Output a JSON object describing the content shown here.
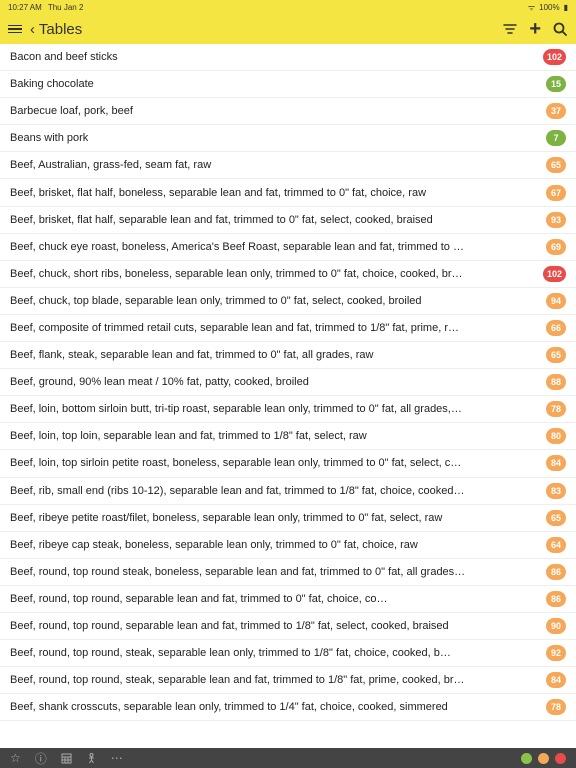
{
  "status": {
    "time": "10:27 AM",
    "date": "Thu Jan 2",
    "wifi": "⌁",
    "battery": "100%"
  },
  "nav": {
    "back_title": "‹ Tables",
    "filter": "⇅",
    "plus": "+",
    "search": "⌕"
  },
  "colors": {
    "red": "#e94b4b",
    "green": "#7cb342",
    "orange": "#f5a85a"
  },
  "items": [
    {
      "label": "Bacon and beef sticks",
      "value": "102",
      "color": "red"
    },
    {
      "label": "Baking chocolate",
      "value": "15",
      "color": "green"
    },
    {
      "label": "Barbecue loaf, pork, beef",
      "value": "37",
      "color": "orange"
    },
    {
      "label": "Beans with pork",
      "value": "7",
      "color": "green"
    },
    {
      "label": "Beef, Australian, grass-fed, seam fat, raw",
      "value": "65",
      "color": "orange"
    },
    {
      "label": "Beef, brisket, flat half, boneless, separable lean and fat, trimmed to 0\" fat, choice, raw",
      "value": "67",
      "color": "orange"
    },
    {
      "label": "Beef, brisket, flat half, separable lean and fat, trimmed to 0\" fat, select, cooked, braised",
      "value": "93",
      "color": "orange"
    },
    {
      "label": "Beef, chuck eye roast, boneless, America's Beef Roast, separable lean and fat, trimmed to …",
      "value": "69",
      "color": "orange"
    },
    {
      "label": "Beef, chuck, short ribs, boneless, separable lean only, trimmed to 0\" fat, choice, cooked, br…",
      "value": "102",
      "color": "red"
    },
    {
      "label": "Beef, chuck, top blade, separable lean only, trimmed to 0\" fat, select, cooked, broiled",
      "value": "94",
      "color": "orange"
    },
    {
      "label": "Beef, composite of trimmed retail cuts, separable lean and fat, trimmed to 1/8\" fat, prime, r…",
      "value": "66",
      "color": "orange"
    },
    {
      "label": "Beef, flank, steak, separable lean and fat, trimmed to 0\" fat, all grades, raw",
      "value": "65",
      "color": "orange"
    },
    {
      "label": "Beef, ground, 90% lean meat / 10% fat, patty, cooked, broiled",
      "value": "88",
      "color": "orange"
    },
    {
      "label": "Beef, loin, bottom sirloin butt, tri-tip roast, separable lean only, trimmed to 0\" fat, all grades,…",
      "value": "78",
      "color": "orange"
    },
    {
      "label": "Beef, loin, top loin, separable lean and fat, trimmed to 1/8\" fat, select, raw",
      "value": "80",
      "color": "orange"
    },
    {
      "label": "Beef, loin, top sirloin petite roast, boneless, separable lean only, trimmed to 0\" fat, select, c…",
      "value": "84",
      "color": "orange"
    },
    {
      "label": "Beef, rib, small end (ribs 10-12), separable lean and fat, trimmed to 1/8\" fat, choice, cooked…",
      "value": "83",
      "color": "orange"
    },
    {
      "label": "Beef, ribeye petite roast/filet, boneless, separable lean only, trimmed to 0\" fat, select, raw",
      "value": "65",
      "color": "orange"
    },
    {
      "label": "Beef, ribeye cap steak, boneless, separable lean only, trimmed to 0\" fat, choice, raw",
      "value": "64",
      "color": "orange"
    },
    {
      "label": "Beef, round, top round steak, boneless, separable lean and fat, trimmed to 0\" fat, all grades…",
      "value": "86",
      "color": "orange"
    },
    {
      "label": "Beef, round, top round, separable lean and fat, trimmed to 0\" fat, choice, co…",
      "value": "86",
      "color": "orange"
    },
    {
      "label": "Beef, round, top round, separable lean and fat, trimmed to 1/8\" fat, select, cooked, braised",
      "value": "90",
      "color": "orange"
    },
    {
      "label": "Beef, round, top round, steak, separable lean only, trimmed to 1/8\" fat, choice, cooked, b…",
      "value": "92",
      "color": "orange"
    },
    {
      "label": "Beef, round, top round, steak, separable lean and fat, trimmed to 1/8\" fat, prime, cooked, br…",
      "value": "84",
      "color": "orange"
    },
    {
      "label": "Beef, shank crosscuts, separable lean only, trimmed to 1/4\" fat, choice, cooked, simmered",
      "value": "78",
      "color": "orange"
    }
  ],
  "bottom": {
    "star": "☆",
    "info": "ⓘ",
    "calc": "▦",
    "person": "⚲",
    "more": "⋯"
  }
}
